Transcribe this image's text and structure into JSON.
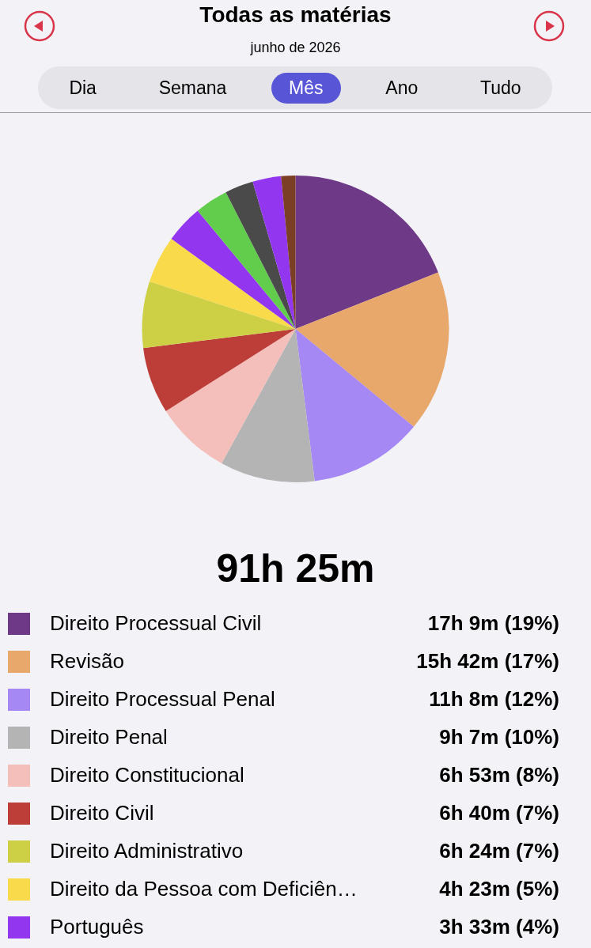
{
  "chart_data": {
    "type": "pie",
    "title": "Todas as matérias",
    "subtitle": "junho de 2026",
    "categories": [
      "Direito Processual Civil",
      "Revisão",
      "Direito Processual Penal",
      "Direito Penal",
      "Direito Constitucional",
      "Direito Civil",
      "Direito Administrativo",
      "Direito da Pessoa com Deficiên…",
      "Português",
      null,
      null,
      null,
      null
    ],
    "values": [
      19,
      17,
      12,
      10,
      8,
      7,
      7,
      5,
      4,
      3.5,
      3,
      3,
      1.5
    ],
    "value_labels": [
      "17h 9m  (19%)",
      "15h 42m  (17%)",
      "11h 8m  (12%)",
      "9h 7m  (10%)",
      "6h 53m  (8%)",
      "6h 40m  (7%)",
      "6h 24m  (7%)",
      "4h 23m  (5%)",
      "3h 33m  (4%)",
      null,
      null,
      null,
      null
    ],
    "colors": [
      "#6e3a87",
      "#e8a76b",
      "#a688f5",
      "#b4b4b4",
      "#f4bfba",
      "#bd3e38",
      "#cdcf44",
      "#f9da4a",
      "#9336f0",
      "#62cd4d",
      "#4a4a4a",
      "#9336f0",
      "#7a3f24"
    ],
    "annotations": [
      "Dia",
      "Semana",
      "Mês",
      "Ano",
      "Tudo",
      "91h 25m"
    ],
    "legend": "bottom"
  }
}
